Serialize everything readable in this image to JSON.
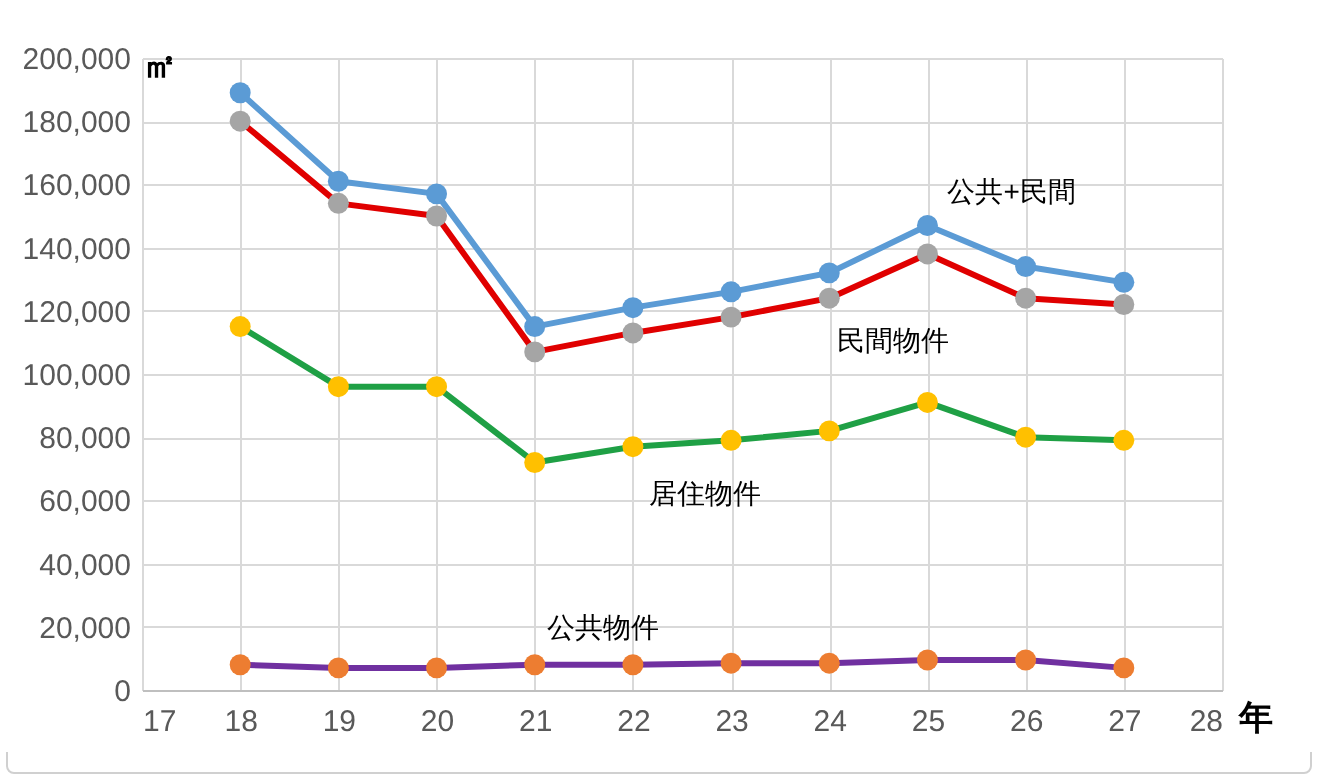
{
  "chart_data": {
    "type": "line",
    "xlabel": "年",
    "ylabel": "㎡",
    "x": [
      18,
      19,
      20,
      21,
      22,
      23,
      24,
      25,
      26,
      27
    ],
    "series": [
      {
        "name": "公共+民間",
        "color": "#5b9bd5",
        "colors": [
          "#5b9bd5",
          "#5b9bd5",
          "#5b9bd5",
          "#5b9bd5",
          "#5b9bd5",
          "#5b9bd5",
          "#5b9bd5",
          "#5b9bd5",
          "#5b9bd5",
          "#5b9bd5"
        ],
        "values": [
          189000,
          161000,
          157000,
          115000,
          121000,
          126000,
          132000,
          147000,
          134000,
          129000
        ]
      },
      {
        "name": "民間物件",
        "color": "#e00000",
        "colors": [
          "#a5a5a5",
          "#a5a5a5",
          "#a5a5a5",
          "#a5a5a5",
          "#a5a5a5",
          "#a5a5a5",
          "#a5a5a5",
          "#a5a5a5",
          "#a5a5a5",
          "#a5a5a5"
        ],
        "values": [
          180000,
          154000,
          150000,
          107000,
          113000,
          118000,
          124000,
          138000,
          124000,
          122000
        ]
      },
      {
        "name": "居住物件",
        "color": "#1fa045",
        "colors": [
          "#ffc000",
          "#ffc000",
          "#ffc000",
          "#ffc000",
          "#ffc000",
          "#ffc000",
          "#ffc000",
          "#ffc000",
          "#ffc000",
          "#ffc000"
        ],
        "values": [
          115000,
          96000,
          96000,
          72000,
          77000,
          79000,
          82000,
          91000,
          80000,
          79000
        ]
      },
      {
        "name": "公共物件",
        "color": "#7030a0",
        "colors": [
          "#ed7d31",
          "#ed7d31",
          "#ed7d31",
          "#ed7d31",
          "#ed7d31",
          "#ed7d31",
          "#ed7d31",
          "#ed7d31",
          "#ed7d31",
          "#ed7d31"
        ],
        "values": [
          8000,
          7000,
          7000,
          8000,
          8000,
          8500,
          8500,
          9500,
          9500,
          7000
        ]
      }
    ],
    "xlim": [
      17,
      28
    ],
    "xticks": [
      17,
      18,
      19,
      20,
      21,
      22,
      23,
      24,
      25,
      26,
      27,
      28
    ],
    "ylim": [
      0,
      200000
    ],
    "yticks": [
      0,
      {
        "value": 20000,
        "label": "20,000"
      },
      {
        "value": 40000,
        "label": "40,000"
      },
      {
        "value": 60000,
        "label": "60,000"
      },
      {
        "value": 80000,
        "label": "80,000"
      },
      {
        "value": 100000,
        "label": "100,000"
      },
      {
        "value": 120000,
        "label": "120,000"
      },
      {
        "value": 140000,
        "label": "140,000"
      },
      {
        "value": 160000,
        "label": "160,000"
      },
      {
        "value": 180000,
        "label": "180,000"
      },
      {
        "value": 200000,
        "label": "200,000"
      }
    ],
    "grid": true,
    "marker": "circle",
    "line_style": "solid"
  }
}
